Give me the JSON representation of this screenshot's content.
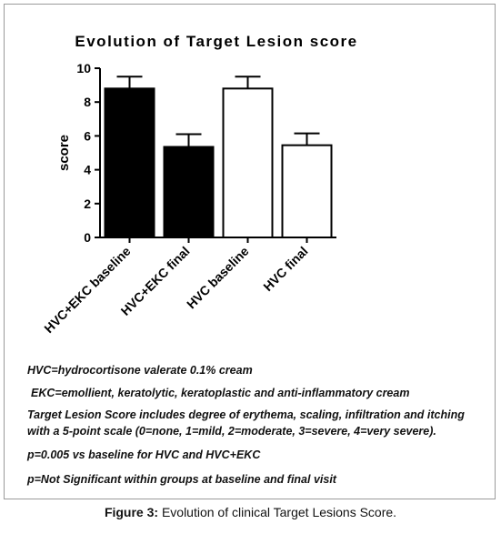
{
  "chart_data": {
    "type": "bar",
    "title": "Evolution of Target Lesion score",
    "ylabel": "score",
    "xlabel": "",
    "ylim": [
      0,
      10
    ],
    "yticks": [
      0,
      2,
      4,
      6,
      8,
      10
    ],
    "categories": [
      "HVC+EKC baseline",
      "HVC+EKC final",
      "HVC baseline",
      "HVC final"
    ],
    "values": [
      8.8,
      5.35,
      8.8,
      5.45
    ],
    "error": [
      0.7,
      0.75,
      0.7,
      0.7
    ],
    "bar_fill": [
      "#000000",
      "#000000",
      "#ffffff",
      "#ffffff"
    ],
    "bar_stroke": "#000000",
    "grid": false,
    "legend": "none"
  },
  "notes": [
    "HVC=hydrocortisone valerate 0.1% cream",
    "EKC=emollient, keratolytic, keratoplastic and anti-inflammatory cream",
    "Target Lesion Score includes degree of erythema, scaling, infiltration and itching with a 5-point scale (0=none, 1=mild, 2=moderate, 3=severe, 4=very severe).",
    "p=0.005 vs baseline for HVC and HVC+EKC",
    "p=Not Significant within groups at baseline and final visit"
  ],
  "caption": {
    "label": "Figure 3:",
    "text": " Evolution of clinical Target Lesions Score."
  }
}
